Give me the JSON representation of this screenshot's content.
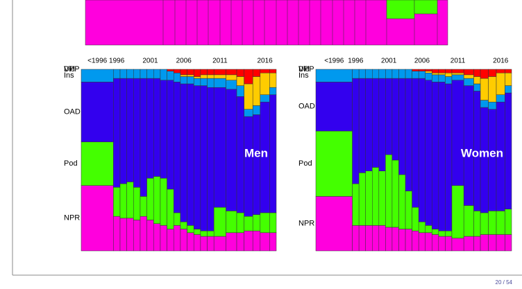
{
  "chart_data": [
    {
      "type": "mosaic",
      "title": "Men",
      "categories": [
        "<1996",
        "1996",
        null,
        null,
        null,
        null,
        "2001",
        null,
        null,
        null,
        null,
        "2006",
        null,
        null,
        null,
        null,
        "2011",
        null,
        null,
        null,
        null,
        "2016",
        null
      ],
      "widths": [
        48,
        10,
        10,
        10,
        10,
        10,
        10,
        10,
        10,
        10,
        10,
        10,
        10,
        10,
        10,
        10,
        18,
        16,
        11,
        13,
        11,
        14,
        10
      ],
      "ylim": [
        0,
        100
      ],
      "series": [
        {
          "name": "NPR",
          "color": "#ff00dd",
          "values": [
            36,
            19,
            18,
            18,
            17,
            19,
            17,
            15,
            14,
            12,
            14,
            12,
            10,
            9,
            8,
            8,
            8,
            10,
            10,
            11,
            11,
            10,
            10
          ]
        },
        {
          "name": "Pod",
          "color": "#44ff00",
          "values": [
            24,
            16,
            19,
            20,
            18,
            11,
            23,
            26,
            26,
            22,
            7,
            4,
            4,
            3,
            3,
            3,
            16,
            12,
            11,
            8,
            9,
            11,
            11
          ]
        },
        {
          "name": "OAD",
          "color": "#3300ee",
          "values": [
            33,
            60,
            58,
            57,
            60,
            65,
            55,
            54,
            54,
            60,
            72,
            76,
            78,
            79,
            80,
            79,
            66,
            67,
            64,
            55,
            55,
            61,
            65
          ]
        },
        {
          "name": "Ins",
          "color": "#0099ee",
          "values": [
            7,
            5,
            5,
            5,
            5,
            5,
            5,
            5,
            6,
            5,
            5,
            4,
            4,
            4,
            4,
            5,
            5,
            5,
            6,
            4,
            5,
            4,
            4
          ]
        },
        {
          "name": "DPP",
          "color": "#ffcc00",
          "values": [
            0,
            0,
            0,
            0,
            0,
            0,
            0,
            0,
            0,
            0,
            0,
            1,
            1,
            1,
            2,
            2,
            2,
            3,
            5,
            14,
            16,
            12,
            8
          ]
        },
        {
          "name": "Vld",
          "color": "#ff0000",
          "values": [
            0,
            0,
            0,
            0,
            0,
            0,
            0,
            0,
            0,
            1,
            2,
            3,
            3,
            4,
            3,
            3,
            3,
            3,
            4,
            8,
            4,
            2,
            2
          ]
        }
      ]
    },
    {
      "type": "mosaic",
      "title": "Women",
      "categories": [
        "<1996",
        "1996",
        null,
        null,
        null,
        null,
        "2001",
        null,
        null,
        null,
        null,
        "2006",
        null,
        null,
        null,
        null,
        "2011",
        null,
        null,
        null,
        null,
        "2016",
        null
      ],
      "widths": [
        55,
        10,
        10,
        10,
        10,
        10,
        10,
        10,
        10,
        10,
        10,
        10,
        10,
        10,
        10,
        10,
        18,
        15,
        10,
        12,
        12,
        13,
        10
      ],
      "ylim": [
        0,
        100
      ],
      "series": [
        {
          "name": "NPR",
          "color": "#ff00dd",
          "values": [
            30,
            14,
            14,
            14,
            14,
            14,
            13,
            13,
            12,
            12,
            11,
            10,
            10,
            9,
            8,
            8,
            7,
            8,
            8,
            9,
            9,
            9,
            9
          ]
        },
        {
          "name": "Pod",
          "color": "#44ff00",
          "values": [
            36,
            23,
            29,
            30,
            32,
            30,
            40,
            37,
            30,
            21,
            13,
            6,
            4,
            3,
            3,
            3,
            29,
            17,
            14,
            12,
            13,
            13,
            14
          ]
        },
        {
          "name": "OAD",
          "color": "#3300ee",
          "values": [
            27,
            58,
            52,
            51,
            49,
            51,
            42,
            45,
            53,
            62,
            71,
            79,
            80,
            81,
            82,
            81,
            58,
            66,
            66,
            58,
            56,
            60,
            64
          ]
        },
        {
          "name": "Ins",
          "color": "#0099ee",
          "values": [
            7,
            5,
            5,
            5,
            5,
            5,
            5,
            5,
            5,
            5,
            4,
            4,
            4,
            4,
            4,
            4,
            3,
            4,
            4,
            4,
            4,
            4,
            4
          ]
        },
        {
          "name": "DPP",
          "color": "#ffcc00",
          "values": [
            0,
            0,
            0,
            0,
            0,
            0,
            0,
            0,
            0,
            0,
            0,
            0,
            1,
            1,
            1,
            2,
            1,
            2,
            4,
            12,
            14,
            12,
            7
          ]
        },
        {
          "name": "Vld",
          "color": "#ff0000",
          "values": [
            0,
            0,
            0,
            0,
            0,
            0,
            0,
            0,
            0,
            0,
            1,
            1,
            1,
            2,
            2,
            2,
            2,
            3,
            4,
            5,
            4,
            2,
            2
          ]
        }
      ]
    }
  ],
  "footer": {
    "page": "20 / 54"
  }
}
